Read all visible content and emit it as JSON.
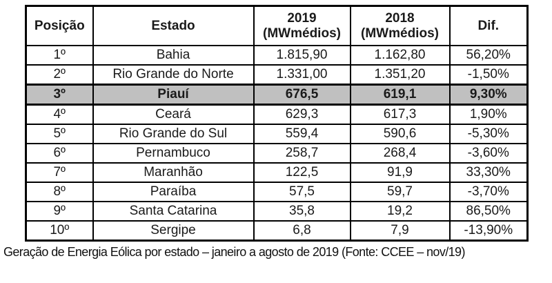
{
  "table": {
    "headers": [
      {
        "line1": "Posição"
      },
      {
        "line1": "Estado"
      },
      {
        "line1": "2019",
        "line2": "(MWmédios)"
      },
      {
        "line1": "2018",
        "line2": "(MWmédios)"
      },
      {
        "line1": "Dif."
      }
    ],
    "rows": [
      {
        "pos": "1º",
        "estado": "Bahia",
        "mw2019": "1.815,90",
        "mw2018": "1.162,80",
        "dif": "56,20%",
        "highlighted": false
      },
      {
        "pos": "2º",
        "estado": "Rio Grande do Norte",
        "mw2019": "1.331,00",
        "mw2018": "1.351,20",
        "dif": "-1,50%",
        "highlighted": false
      },
      {
        "pos": "3º",
        "estado": "Piauí",
        "mw2019": "676,5",
        "mw2018": "619,1",
        "dif": "9,30%",
        "highlighted": true
      },
      {
        "pos": "4º",
        "estado": "Ceará",
        "mw2019": "629,3",
        "mw2018": "617,3",
        "dif": "1,90%",
        "highlighted": false
      },
      {
        "pos": "5º",
        "estado": "Rio Grande do Sul",
        "mw2019": "559,4",
        "mw2018": "590,6",
        "dif": "-5,30%",
        "highlighted": false
      },
      {
        "pos": "6º",
        "estado": "Pernambuco",
        "mw2019": "258,7",
        "mw2018": "268,4",
        "dif": "-3,60%",
        "highlighted": false
      },
      {
        "pos": "7º",
        "estado": "Maranhão",
        "mw2019": "122,5",
        "mw2018": "91,9",
        "dif": "33,30%",
        "highlighted": false
      },
      {
        "pos": "8º",
        "estado": "Paraíba",
        "mw2019": "57,5",
        "mw2018": "59,7",
        "dif": "-3,70%",
        "highlighted": false
      },
      {
        "pos": "9º",
        "estado": "Santa Catarina",
        "mw2019": "35,8",
        "mw2018": "19,2",
        "dif": "86,50%",
        "highlighted": false
      },
      {
        "pos": "10º",
        "estado": "Sergipe",
        "mw2019": "6,8",
        "mw2018": "7,9",
        "dif": "-13,90%",
        "highlighted": false
      }
    ]
  },
  "caption": "Geração de Energia Eólica por estado – janeiro a agosto de 2019 (Fonte: CCEE – nov/19)",
  "colors": {
    "background": "#ffffff",
    "border": "#000000",
    "text": "#1a1a1a",
    "highlight_row_bg": "#c0c0c0"
  }
}
